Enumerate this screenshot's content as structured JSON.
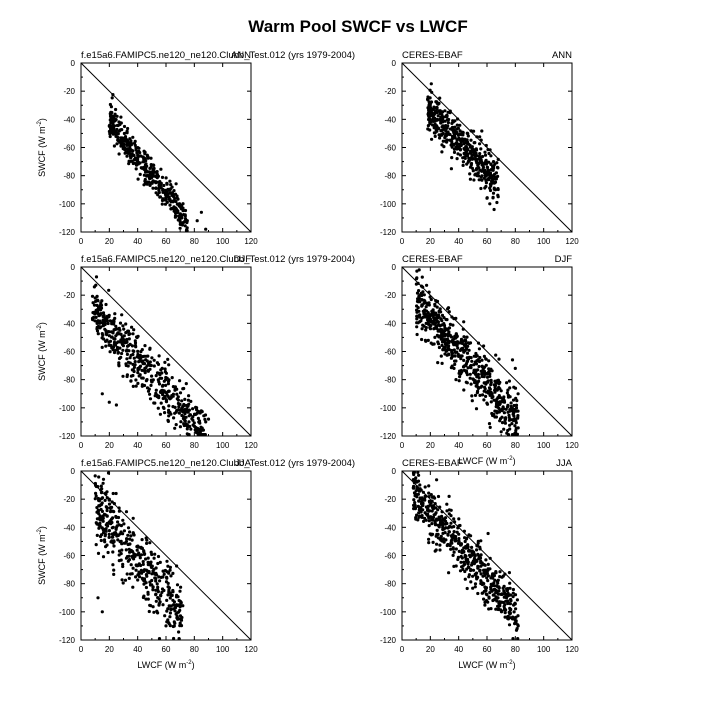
{
  "figure": {
    "title": "Warm Pool SWCF vs LWCF"
  },
  "chart_data": [
    {
      "type": "scatter",
      "left_label": "f.e15a6.FAMIPC5.ne120_ne120.Clubb_Test.012 (yrs 1979-2004)",
      "right_label": "ANN",
      "xlabel": "",
      "ylabel_main": "SWCF (W m",
      "ylabel_sup": "-2",
      "ylabel_close": ")",
      "xlim": [
        0,
        120
      ],
      "ylim": [
        -120,
        0
      ],
      "xticks": [
        "0",
        "20",
        "40",
        "60",
        "80",
        "100",
        "120"
      ],
      "yticks": [
        "0",
        "-20",
        "-40",
        "-60",
        "-80",
        "-100",
        "-120"
      ],
      "reference_line": "1:1",
      "cloud": {
        "x_min": 20,
        "x_max": 75,
        "slope": -1.32,
        "intercept": -14,
        "spread": 6,
        "n": 420,
        "seed": 11,
        "extra": [
          [
            82,
            -112
          ],
          [
            85,
            -106
          ],
          [
            88,
            -118
          ],
          [
            75,
            -112
          ],
          [
            72,
            -103
          ]
        ]
      }
    },
    {
      "type": "scatter",
      "left_label": "CERES-EBAF",
      "right_label": "ANN",
      "xlabel": "",
      "ylabel_main": "",
      "ylabel_sup": "",
      "ylabel_close": "",
      "xlim": [
        0,
        120
      ],
      "ylim": [
        -120,
        0
      ],
      "xticks": [
        "0",
        "20",
        "40",
        "60",
        "80",
        "100",
        "120"
      ],
      "yticks": [
        "0",
        "-20",
        "-40",
        "-60",
        "-80",
        "-100",
        "-120"
      ],
      "reference_line": "1:1",
      "cloud": {
        "x_min": 18,
        "x_max": 68,
        "slope": -1.05,
        "intercept": -13,
        "spread": 7,
        "n": 480,
        "seed": 23,
        "extra": [
          [
            62,
            -100
          ],
          [
            65,
            -104
          ],
          [
            60,
            -96
          ],
          [
            66,
            -90
          ],
          [
            24,
            -32
          ],
          [
            26,
            -34
          ]
        ]
      }
    },
    {
      "type": "scatter",
      "left_label": "f.e15a6.FAMIPC5.ne120_ne120.Clubb_Test.012 (yrs 1979-2004)",
      "right_label": "DJF",
      "xlabel": "",
      "ylabel_main": "SWCF (W m",
      "ylabel_sup": "-2",
      "ylabel_close": ")",
      "xlim": [
        0,
        120
      ],
      "ylim": [
        -120,
        0
      ],
      "xticks": [
        "0",
        "20",
        "40",
        "60",
        "80",
        "100",
        "120"
      ],
      "yticks": [
        "0",
        "-20",
        "-40",
        "-60",
        "-80",
        "-100",
        "-120"
      ],
      "reference_line": "1:1",
      "cloud": {
        "x_min": 8,
        "x_max": 88,
        "slope": -1.12,
        "intercept": -22,
        "spread": 9,
        "n": 520,
        "seed": 37,
        "extra": [
          [
            10,
            -22
          ],
          [
            12,
            -24
          ],
          [
            15,
            -90
          ],
          [
            20,
            -96
          ],
          [
            25,
            -98
          ],
          [
            88,
            -110
          ],
          [
            90,
            -108
          ]
        ]
      }
    },
    {
      "type": "scatter",
      "left_label": "CERES-EBAF",
      "right_label": "DJF",
      "xlabel": "LWCF (W m",
      "xlabel_sup": "-2",
      "xlabel_close": ")",
      "ylabel_main": "",
      "ylabel_sup": "",
      "ylabel_close": "",
      "xlim": [
        0,
        120
      ],
      "ylim": [
        -120,
        0
      ],
      "xticks": [
        "0",
        "20",
        "40",
        "60",
        "80",
        "100",
        "120"
      ],
      "yticks": [
        "0",
        "-20",
        "-40",
        "-60",
        "-80",
        "-100",
        "-120"
      ],
      "reference_line": "1:1",
      "cloud": {
        "x_min": 10,
        "x_max": 82,
        "slope": -1.18,
        "intercept": -12,
        "spread": 10,
        "n": 620,
        "seed": 53,
        "extra": [
          [
            74,
            -118
          ],
          [
            76,
            -115
          ],
          [
            70,
            -117
          ],
          [
            80,
            -72
          ],
          [
            78,
            -66
          ]
        ]
      }
    },
    {
      "type": "scatter",
      "left_label": "f.e15a6.FAMIPC5.ne120_ne120.Clubb_Test.012 (yrs 1979-2004)",
      "right_label": "JJA",
      "xlabel": "LWCF (W m",
      "xlabel_sup": "-2",
      "xlabel_close": ")",
      "ylabel_main": "SWCF (W m",
      "ylabel_sup": "-2",
      "ylabel_close": ")",
      "xlim": [
        0,
        120
      ],
      "ylim": [
        -120,
        0
      ],
      "xticks": [
        "0",
        "20",
        "40",
        "60",
        "80",
        "100",
        "120"
      ],
      "yticks": [
        "0",
        "-20",
        "-40",
        "-60",
        "-80",
        "-100",
        "-120"
      ],
      "reference_line": "1:1",
      "cloud": {
        "x_min": 10,
        "x_max": 72,
        "slope": -1.25,
        "intercept": -12,
        "spread": 12,
        "n": 430,
        "seed": 71,
        "extra": [
          [
            20,
            -20
          ],
          [
            22,
            -22
          ],
          [
            12,
            -90
          ],
          [
            15,
            -100
          ],
          [
            60,
            -110
          ],
          [
            70,
            -108
          ],
          [
            68,
            -104
          ]
        ]
      }
    },
    {
      "type": "scatter",
      "left_label": "CERES-EBAF",
      "right_label": "JJA",
      "xlabel": "LWCF (W m",
      "xlabel_sup": "-2",
      "xlabel_close": ")",
      "ylabel_main": "",
      "ylabel_sup": "",
      "ylabel_close": "",
      "xlim": [
        0,
        120
      ],
      "ylim": [
        -120,
        0
      ],
      "xticks": [
        "0",
        "20",
        "40",
        "60",
        "80",
        "100",
        "120"
      ],
      "yticks": [
        "0",
        "-20",
        "-40",
        "-60",
        "-80",
        "-100",
        "-120"
      ],
      "reference_line": "1:1",
      "cloud": {
        "x_min": 8,
        "x_max": 82,
        "slope": -1.18,
        "intercept": -6,
        "spread": 9,
        "n": 560,
        "seed": 89,
        "extra": [
          [
            8,
            -12
          ],
          [
            10,
            -14
          ],
          [
            80,
            -108
          ],
          [
            82,
            -110
          ],
          [
            78,
            -105
          ]
        ]
      }
    }
  ]
}
